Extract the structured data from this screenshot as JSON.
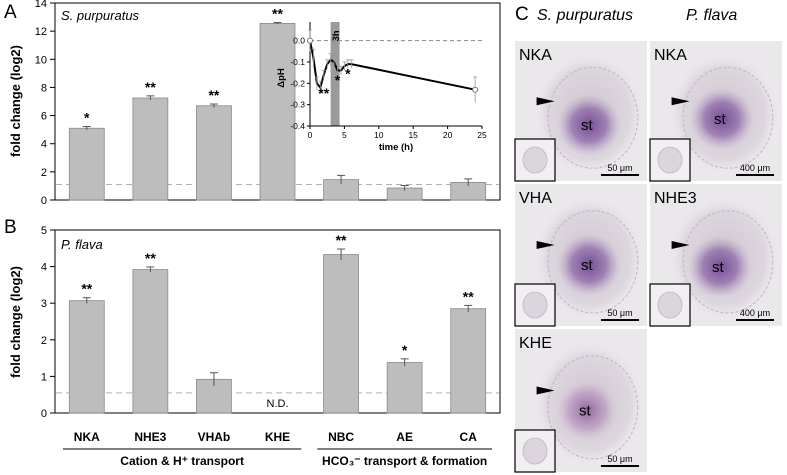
{
  "panels": {
    "A": {
      "letter": "A",
      "species": "S. purpuratus"
    },
    "B": {
      "letter": "B",
      "species": "P. flava"
    },
    "C": {
      "letter": "C"
    }
  },
  "chart_data": [
    {
      "id": "A",
      "type": "bar",
      "title": "S. purpuratus",
      "ylabel": "fold change (log2)",
      "ylim": [
        0,
        14
      ],
      "yticks": [
        0,
        2,
        4,
        6,
        8,
        10,
        12,
        14
      ],
      "categories": [
        "NKA",
        "NHE3",
        "VHAb",
        "KHE",
        "NBC",
        "AE",
        "CA"
      ],
      "values": [
        5.1,
        7.25,
        6.7,
        12.55,
        1.45,
        0.85,
        1.25
      ],
      "errors": [
        0.12,
        0.15,
        0.12,
        0.06,
        0.3,
        0.18,
        0.25
      ],
      "significance": [
        "*",
        "**",
        "**",
        "**",
        "",
        "",
        ""
      ],
      "reference_line": 1.1,
      "bar_color": "#bdbdbd",
      "inset": {
        "type": "line",
        "xlabel": "time (h)",
        "ylabel": "ΔpH",
        "xlim": [
          0,
          25
        ],
        "ylim": [
          -0.4,
          0.05
        ],
        "xticks": [
          0,
          5,
          10,
          15,
          20,
          25
        ],
        "yticks": [
          0.0,
          -0.1,
          -0.2,
          -0.3,
          -0.4
        ],
        "band_label": "3h",
        "band_range": [
          3,
          4.3
        ],
        "x": [
          0,
          0.5,
          1,
          1.5,
          2,
          2.5,
          3,
          3.5,
          4,
          4.5,
          5,
          5.5,
          6,
          24
        ],
        "y": [
          0.0,
          -0.08,
          -0.2,
          -0.22,
          -0.16,
          -0.11,
          -0.09,
          -0.1,
          -0.14,
          -0.14,
          -0.12,
          -0.11,
          -0.11,
          -0.23
        ],
        "errors": [
          0.05,
          0.04,
          0.03,
          0.03,
          0.02,
          0.02,
          0.03,
          0.03,
          0.03,
          0.02,
          0.02,
          0.02,
          0.02,
          0.06
        ],
        "annotations": [
          {
            "x": 2.0,
            "y": -0.24,
            "text": "**"
          },
          {
            "x": 4.0,
            "y": -0.18,
            "text": "*"
          },
          {
            "x": 5.5,
            "y": -0.15,
            "text": "*"
          }
        ]
      }
    },
    {
      "id": "B",
      "type": "bar",
      "title": "P. flava",
      "ylabel": "fold change (log2)",
      "ylim": [
        0,
        5
      ],
      "yticks": [
        0,
        1,
        2,
        3,
        4,
        5
      ],
      "categories": [
        "NKA",
        "NHE3",
        "VHAb",
        "KHE",
        "NBC",
        "AE",
        "CA"
      ],
      "values": [
        3.07,
        3.92,
        0.92,
        null,
        4.33,
        1.38,
        2.85
      ],
      "errors": [
        0.08,
        0.07,
        0.18,
        null,
        0.15,
        0.1,
        0.09
      ],
      "significance": [
        "**",
        "**",
        "",
        "",
        "**",
        "*",
        "**"
      ],
      "missing_label": "N.D.",
      "reference_line": 0.55,
      "bar_color": "#bdbdbd",
      "groups": [
        {
          "label": "Cation & H⁺ transport",
          "span": [
            0,
            3
          ]
        },
        {
          "label": "HCO₃⁻ transport & formation",
          "span": [
            4,
            6
          ]
        }
      ]
    }
  ],
  "photos": {
    "col_headers": [
      "S. purpuratus",
      "P. flava"
    ],
    "tiles": [
      {
        "gene": "NKA",
        "region": "st",
        "scale": "50 μm"
      },
      {
        "gene": "NKA",
        "region": "st",
        "scale": "400 μm"
      },
      {
        "gene": "VHA",
        "region": "st",
        "scale": "50 μm"
      },
      {
        "gene": "NHE3",
        "region": "st",
        "scale": "400 μm"
      },
      {
        "gene": "KHE",
        "region": "st",
        "scale": "50 μm"
      }
    ]
  },
  "colors": {
    "bar": "#bdbdbd",
    "bar_edge": "#8a8a8a",
    "ref_line": "#b0b0b0",
    "photo_bg": "#ebe8ec",
    "tissue": "#d8d2d8",
    "stain": "#8a62a4",
    "band": "#9a9a9a"
  }
}
